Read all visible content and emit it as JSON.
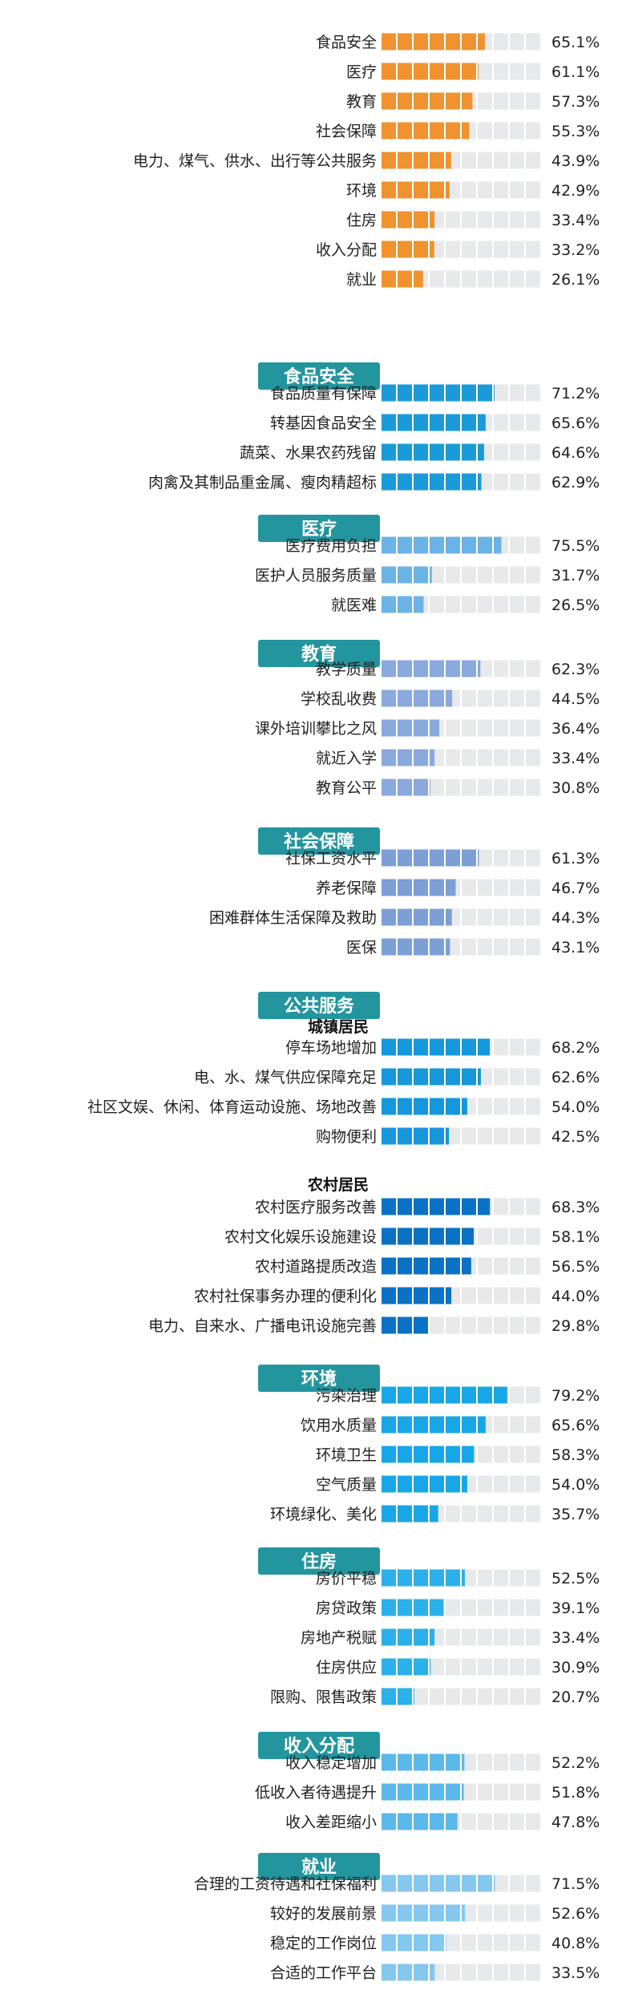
{
  "chart_data": {
    "type": "bar",
    "sections": [
      {
        "header": "",
        "items": [
          {
            "label": "食品安全",
            "value": 65.1
          },
          {
            "label": "医疗",
            "value": 61.1
          },
          {
            "label": "教育",
            "value": 57.3
          },
          {
            "label": "社会保障",
            "value": 55.3
          },
          {
            "label": "电力、煤气、供水、出行等公共服务",
            "value": 43.9
          },
          {
            "label": "环境",
            "value": 42.9
          },
          {
            "label": "住房",
            "value": 33.4
          },
          {
            "label": "收入分配",
            "value": 33.2
          },
          {
            "label": "就业",
            "value": 26.1
          }
        ]
      },
      {
        "header": "食品安全",
        "items": [
          {
            "label": "食品质量有保障",
            "value": 71.2
          },
          {
            "label": "转基因食品安全",
            "value": 65.6
          },
          {
            "label": "蔬菜、水果农药残留",
            "value": 64.6
          },
          {
            "label": "肉禽及其制品重金属、瘦肉精超标",
            "value": 62.9
          }
        ]
      },
      {
        "header": "医疗",
        "items": [
          {
            "label": "医疗费用负担",
            "value": 75.5
          },
          {
            "label": "医护人员服务质量",
            "value": 31.7
          },
          {
            "label": "就医难",
            "value": 26.5
          }
        ]
      },
      {
        "header": "教育",
        "items": [
          {
            "label": "教学质量",
            "value": 62.3
          },
          {
            "label": "学校乱收费",
            "value": 44.5
          },
          {
            "label": "课外培训攀比之风",
            "value": 36.4
          },
          {
            "label": "就近入学",
            "value": 33.4
          },
          {
            "label": "教育公平",
            "value": 30.8
          }
        ]
      },
      {
        "header": "社会保障",
        "items": [
          {
            "label": "社保工资水平",
            "value": 61.3
          },
          {
            "label": "养老保障",
            "value": 46.7
          },
          {
            "label": "困难群体生活保障及救助",
            "value": 44.3
          },
          {
            "label": "医保",
            "value": 43.1
          }
        ]
      },
      {
        "header": "公共服务",
        "subheader": "城镇居民",
        "items": [
          {
            "label": "停车场地增加",
            "value": 68.2
          },
          {
            "label": "电、水、煤气供应保障充足",
            "value": 62.6
          },
          {
            "label": "社区文娱、休闲、体育运动设施、场地改善",
            "value": 54.0
          },
          {
            "label": "购物便利",
            "value": 42.5
          }
        ]
      },
      {
        "header": "",
        "subheader": "农村居民",
        "items": [
          {
            "label": "农村医疗服务改善",
            "value": 68.3
          },
          {
            "label": "农村文化娱乐设施建设",
            "value": 58.1
          },
          {
            "label": "农村道路提质改造",
            "value": 56.5
          },
          {
            "label": "农村社保事务办理的便利化",
            "value": 44.0
          },
          {
            "label": "电力、自来水、广播电讯设施完善",
            "value": 29.8
          }
        ]
      },
      {
        "header": "环境",
        "items": [
          {
            "label": "污染治理",
            "value": 79.2
          },
          {
            "label": "饮用水质量",
            "value": 65.6
          },
          {
            "label": "环境卫生",
            "value": 58.3
          },
          {
            "label": "空气质量",
            "value": 54.0
          },
          {
            "label": "环境绿化、美化",
            "value": 35.7
          }
        ]
      },
      {
        "header": "住房",
        "items": [
          {
            "label": "房价平稳",
            "value": 52.5
          },
          {
            "label": "房贷政策",
            "value": 39.1
          },
          {
            "label": "房地产税赋",
            "value": 33.4
          },
          {
            "label": "住房供应",
            "value": 30.9
          },
          {
            "label": "限购、限售政策",
            "value": 20.7
          }
        ]
      },
      {
        "header": "收入分配",
        "items": [
          {
            "label": "收入稳定增加",
            "value": 52.2
          },
          {
            "label": "低收入者待遇提升",
            "value": 51.8
          },
          {
            "label": "收入差距缩小",
            "value": 47.8
          }
        ]
      },
      {
        "header": "就业",
        "items": [
          {
            "label": "合理的工资待遇和社保福利",
            "value": 71.5
          },
          {
            "label": "较好的发展前景",
            "value": 52.6
          },
          {
            "label": "稳定的工作岗位",
            "value": 40.8
          },
          {
            "label": "合适的工作平台",
            "value": 33.5
          }
        ]
      }
    ],
    "value_suffix": "%",
    "xlim": [
      0,
      100
    ],
    "colors": {
      "top": "#f0922e",
      "food": "#1a9ad8",
      "medical": "#6bb3e6",
      "education": "#8aa9dc",
      "social": "#7c9fd6",
      "public_urban": "#1597dc",
      "public_rural": "#0a72c4",
      "environment": "#18a7e6",
      "housing": "#2bb0e9",
      "income": "#5ab9ea",
      "employment": "#84c7ef",
      "track": "#e8e9eb",
      "header_bg": "#23959f"
    },
    "section_color_keys": [
      "top",
      "food",
      "medical",
      "education",
      "social",
      "public_urban",
      "public_rural",
      "environment",
      "housing",
      "income",
      "employment"
    ]
  }
}
